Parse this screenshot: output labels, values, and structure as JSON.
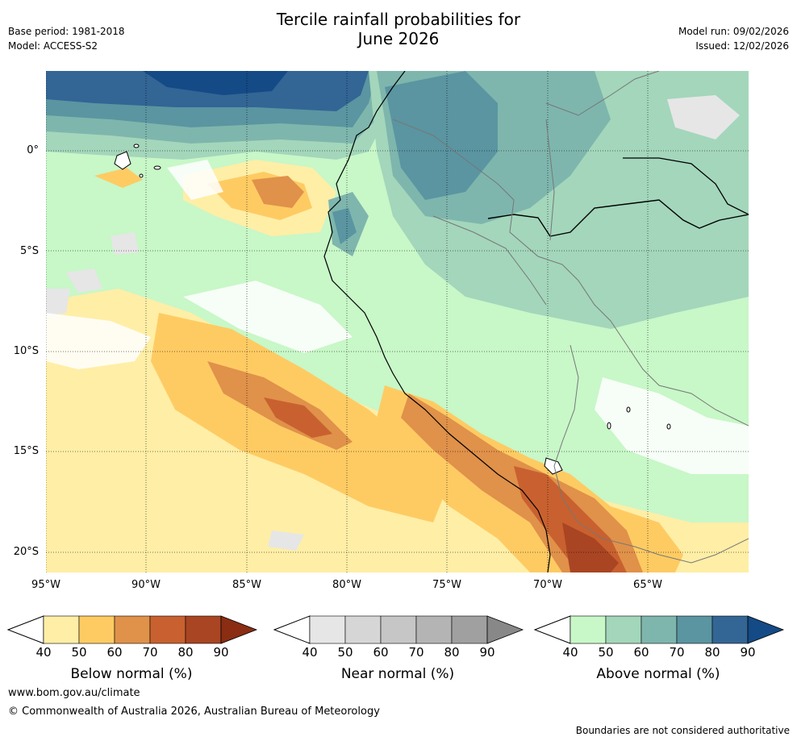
{
  "title_line1": "Tercile rainfall probabilities for",
  "title_line2": "June 2026",
  "base_period": "Base period: 1981-2018",
  "model": "Model: ACCESS-S2",
  "model_run": "Model run: 09/02/2026",
  "issued": "Issued: 12/02/2026",
  "lat_ticks": [
    "0°",
    "5°S",
    "10°S",
    "15°S",
    "20°S"
  ],
  "lon_ticks": [
    "95°W",
    "90°W",
    "85°W",
    "80°W",
    "75°W",
    "70°W",
    "65°W"
  ],
  "colorbars": [
    {
      "title": "Below normal (%)",
      "labels": [
        "40",
        "50",
        "60",
        "70",
        "80",
        "90"
      ],
      "colors": [
        "#ffeea6",
        "#fecb63",
        "#e0914a",
        "#c8612f",
        "#a94522",
        "#8a2d12"
      ]
    },
    {
      "title": "Near normal (%)",
      "labels": [
        "40",
        "50",
        "60",
        "70",
        "80",
        "90"
      ],
      "colors": [
        "#e6e6e6",
        "#d6d6d6",
        "#c6c6c6",
        "#b4b4b4",
        "#a0a0a0",
        "#888888"
      ]
    },
    {
      "title": "Above normal (%)",
      "labels": [
        "40",
        "50",
        "60",
        "70",
        "80",
        "90"
      ],
      "colors": [
        "#c8f7c8",
        "#a3d6bb",
        "#7eb6ad",
        "#5a95a1",
        "#336595",
        "#144a86"
      ]
    }
  ],
  "website": "www.bom.gov.au/climate",
  "copyright": "© Commonwealth of Australia 2026, Australian Bureau of Meteorology",
  "disclaimer": "Boundaries are not considered authoritative"
}
